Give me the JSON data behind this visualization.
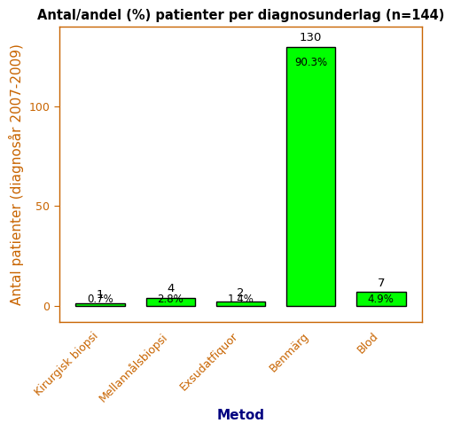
{
  "title": "Antal/andel (%) patienter per diagnosunderlag (n=144)",
  "xlabel": "Metod",
  "ylabel": "Antal patienter (diagnosår 2007-2009)",
  "categories": [
    "Kirurgisk biopsi",
    "Mellannålsbiopsi",
    "Exsudatfiquor",
    "Benmärg",
    "Blod"
  ],
  "values": [
    1,
    4,
    2,
    130,
    7
  ],
  "percentages": [
    "0.7%",
    "2.8%",
    "1.4%",
    "90.3%",
    "4.9%"
  ],
  "bar_color": "#00FF00",
  "bar_edge_color": "#000000",
  "ylim": [
    -8,
    140
  ],
  "yticks": [
    0,
    50,
    100
  ],
  "background_color": "#ffffff",
  "title_fontsize": 10.5,
  "axis_label_fontsize": 11,
  "ylabel_color": "#c86400",
  "xlabel_color": "#000080",
  "tick_label_fontsize": 9,
  "xtick_color": "#c86400",
  "ytick_color": "#c86400",
  "annotation_fontsize": 9.5,
  "pct_fontsize": 8.5,
  "bar_width": 0.7
}
